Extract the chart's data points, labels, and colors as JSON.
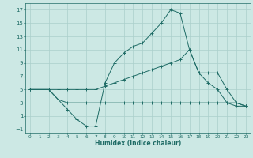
{
  "xlabel": "Humidex (Indice chaleur)",
  "background_color": "#cce8e4",
  "grid_color": "#aacfcb",
  "line_color": "#1e6b65",
  "xlim": [
    -0.5,
    23.5
  ],
  "ylim": [
    -1.5,
    18
  ],
  "xticks": [
    0,
    1,
    2,
    3,
    4,
    5,
    6,
    7,
    8,
    9,
    10,
    11,
    12,
    13,
    14,
    15,
    16,
    17,
    18,
    19,
    20,
    21,
    22,
    23
  ],
  "yticks": [
    -1,
    1,
    3,
    5,
    7,
    9,
    11,
    13,
    15,
    17
  ],
  "line1_x": [
    0,
    1,
    2,
    3,
    4,
    5,
    6,
    7,
    8,
    9,
    10,
    11,
    12,
    13,
    14,
    15,
    16,
    17,
    18,
    19,
    20,
    21,
    22,
    23
  ],
  "line1_y": [
    5,
    5,
    5,
    3.5,
    2.0,
    0.5,
    -0.5,
    -0.5,
    6.0,
    9.0,
    10.5,
    11.5,
    12.0,
    13.5,
    15.0,
    17.0,
    16.5,
    11.0,
    7.5,
    6.0,
    5.0,
    3.0,
    2.5,
    2.5
  ],
  "line2_x": [
    0,
    1,
    2,
    3,
    4,
    5,
    6,
    7,
    8,
    9,
    10,
    11,
    12,
    13,
    14,
    15,
    16,
    17,
    18,
    19,
    20,
    21,
    22,
    23
  ],
  "line2_y": [
    5,
    5,
    5,
    3.5,
    3.0,
    3.0,
    3.0,
    3.0,
    3.0,
    3.0,
    3.0,
    3.0,
    3.0,
    3.0,
    3.0,
    3.0,
    3.0,
    3.0,
    3.0,
    3.0,
    3.0,
    3.0,
    3.0,
    2.5
  ],
  "line3_x": [
    0,
    1,
    2,
    3,
    4,
    5,
    6,
    7,
    8,
    9,
    10,
    11,
    12,
    13,
    14,
    15,
    16,
    17,
    18,
    19,
    20,
    21,
    22,
    23
  ],
  "line3_y": [
    5,
    5,
    5,
    5.0,
    5.0,
    5.0,
    5.0,
    5.0,
    5.5,
    6.0,
    6.5,
    7.0,
    7.5,
    8.0,
    8.5,
    9.0,
    9.5,
    11.0,
    7.5,
    7.5,
    7.5,
    5.0,
    3.0,
    2.5
  ]
}
